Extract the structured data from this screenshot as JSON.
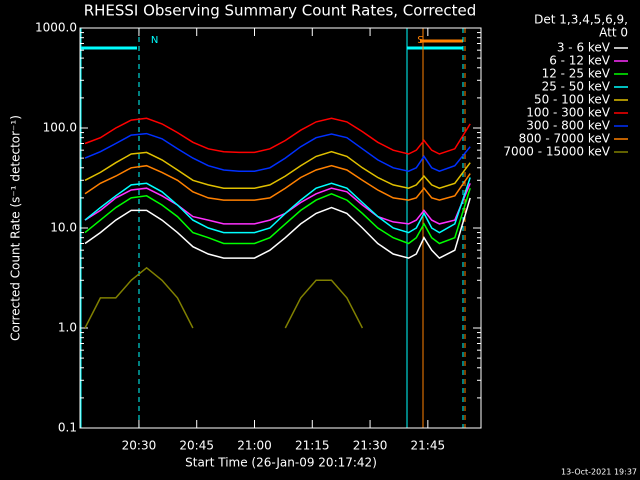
{
  "chart_data": {
    "type": "line",
    "title": "RHESSI Observing Summary Count Rates, Corrected",
    "x_label": "Start Time (26-Jan-09 20:17:42)",
    "y_label": "Corrected Count Rate (s⁻¹ detector⁻¹)",
    "legend_title": [
      "Det 1,3,4,5,6,9,",
      "Att 0"
    ],
    "footer": "13-Oct-2021 19:37",
    "annotations": [
      {
        "text": "N",
        "x": 1232
      },
      {
        "text": "S",
        "x": 1301
      }
    ],
    "log_scale": true,
    "legend": "right",
    "xlim": [
      1214.7,
      1318.8
    ],
    "xticks": [
      {
        "value": 1230,
        "label": "20:30"
      },
      {
        "value": 1245,
        "label": "20:45"
      },
      {
        "value": 1260,
        "label": "21:00"
      },
      {
        "value": 1275,
        "label": "21:15"
      },
      {
        "value": 1290,
        "label": "21:30"
      },
      {
        "value": 1305,
        "label": "21:45"
      }
    ],
    "ylim": [
      0.1,
      1000
    ],
    "yticks": [
      {
        "value": 0.1,
        "label": "0.1"
      },
      {
        "value": 1,
        "label": "1.0"
      },
      {
        "value": 10,
        "label": "10.0"
      },
      {
        "value": 100,
        "label": "100.0"
      },
      {
        "value": 1000,
        "label": "1000.0"
      }
    ],
    "x": [
      1216,
      1220,
      1224,
      1228,
      1232,
      1236,
      1240,
      1244,
      1248,
      1252,
      1256,
      1260,
      1264,
      1268,
      1272,
      1276,
      1280,
      1284,
      1288,
      1292,
      1296,
      1300,
      1302,
      1304,
      1306,
      1308,
      1312,
      1316
    ],
    "series": [
      {
        "name": "3 - 6 keV",
        "color": "#ffffff",
        "values": [
          7,
          9,
          12,
          15,
          15,
          12,
          9,
          6.5,
          5.5,
          5,
          5,
          5,
          6,
          8,
          11,
          14,
          16,
          14,
          10,
          7,
          5.5,
          5,
          5.5,
          8,
          6,
          5,
          6,
          20
        ]
      },
      {
        "name": "6 - 12 keV",
        "color": "#ff30ff",
        "values": [
          12,
          15,
          20,
          24,
          25,
          21,
          17,
          13,
          12,
          11,
          11,
          11,
          12,
          14,
          18,
          22,
          25,
          23,
          17,
          13,
          11.5,
          11,
          12,
          15,
          12,
          11,
          12,
          28
        ]
      },
      {
        "name": "12 - 25 keV",
        "color": "#00ff00",
        "values": [
          9,
          12,
          16,
          20,
          21,
          17,
          13,
          9,
          8,
          7,
          7,
          7,
          8,
          11,
          15,
          19,
          22,
          19,
          14,
          10,
          8,
          7,
          8,
          11,
          8,
          7,
          8,
          25
        ]
      },
      {
        "name": "25 - 50 keV",
        "color": "#00ffff",
        "values": [
          12,
          16,
          21,
          27,
          28,
          23,
          17,
          12,
          10,
          9,
          9,
          9,
          10,
          14,
          19,
          25,
          28,
          25,
          18,
          13,
          10,
          9,
          10,
          14,
          10,
          9,
          11,
          32
        ]
      },
      {
        "name": "50 - 100 keV",
        "color": "#e0c000",
        "values": [
          30,
          36,
          45,
          55,
          57,
          48,
          38,
          30,
          27,
          25,
          25,
          25,
          27,
          33,
          42,
          52,
          58,
          52,
          40,
          32,
          27,
          25,
          27,
          33,
          27,
          25,
          28,
          45
        ]
      },
      {
        "name": "100 - 300 keV",
        "color": "#ff0000",
        "values": [
          70,
          80,
          100,
          120,
          125,
          110,
          90,
          72,
          62,
          58,
          57,
          57,
          62,
          75,
          95,
          115,
          125,
          115,
          92,
          72,
          60,
          55,
          60,
          75,
          60,
          55,
          62,
          110
        ]
      },
      {
        "name": "300 - 800 keV",
        "color": "#0030ff",
        "values": [
          50,
          58,
          70,
          85,
          88,
          78,
          62,
          50,
          42,
          38,
          37,
          37,
          40,
          50,
          65,
          80,
          87,
          80,
          62,
          48,
          40,
          37,
          40,
          52,
          40,
          37,
          42,
          65
        ]
      },
      {
        "name": "800 - 7000 keV",
        "color": "#ff8000",
        "values": [
          22,
          28,
          33,
          40,
          42,
          36,
          30,
          23,
          20,
          19,
          19,
          19,
          20,
          25,
          32,
          38,
          42,
          38,
          30,
          24,
          20,
          19,
          20,
          25,
          20,
          19,
          21,
          35
        ]
      },
      {
        "name": "7000 - 15000 keV",
        "color": "#808000",
        "values": [
          1,
          2,
          2,
          3,
          4,
          3,
          2,
          1,
          null,
          null,
          null,
          null,
          null,
          1,
          2,
          3,
          3,
          2,
          1,
          null,
          null,
          null,
          null,
          null,
          null,
          null,
          null,
          null
        ]
      }
    ]
  }
}
